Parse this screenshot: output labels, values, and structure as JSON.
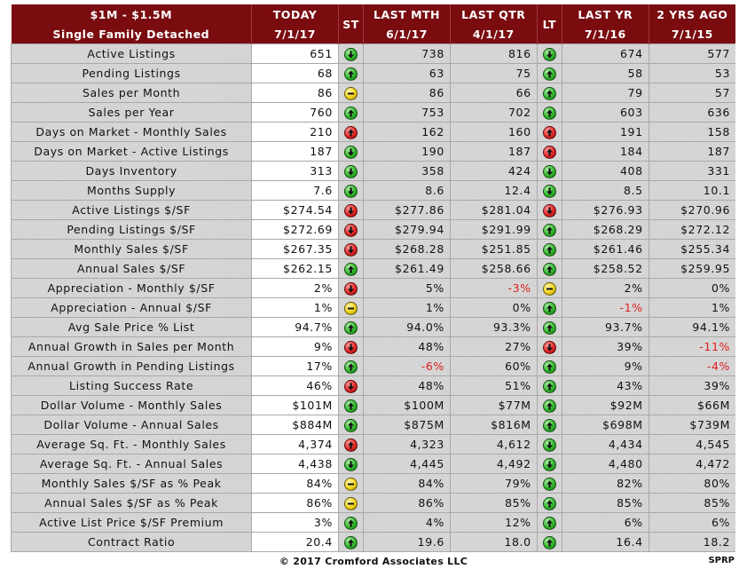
{
  "header": {
    "col_label_line1": "$1M - $1.5M",
    "col_label_line2": "Single Family Detached",
    "today_line1": "TODAY",
    "today_line2": "7/1/17",
    "st": "ST",
    "last_mth_line1": "LAST MTH",
    "last_mth_line2": "6/1/17",
    "last_qtr_line1": "LAST QTR",
    "last_qtr_line2": "4/1/17",
    "lt": "LT",
    "last_yr_line1": "LAST YR",
    "last_yr_line2": "7/1/16",
    "two_yrs_line1": "2 YRS AGO",
    "two_yrs_line2": "7/1/15"
  },
  "indicator_legend": {
    "up": "green-up-arrow-icon",
    "down": "green-down-arrow-icon",
    "red_up": "red-up-arrow-icon",
    "red_down": "red-down-arrow-icon",
    "dash": "yellow-dash-icon"
  },
  "rows": [
    {
      "label": "Active Listings",
      "today": "651",
      "st": "down",
      "last_mth": "738",
      "last_qtr": "816",
      "lt": "down",
      "last_yr": "674",
      "two_yrs": "577"
    },
    {
      "label": "Pending Listings",
      "today": "68",
      "st": "up",
      "last_mth": "63",
      "last_qtr": "75",
      "lt": "up",
      "last_yr": "58",
      "two_yrs": "53"
    },
    {
      "label": "Sales per Month",
      "today": "86",
      "st": "dash",
      "last_mth": "86",
      "last_qtr": "66",
      "lt": "up",
      "last_yr": "79",
      "two_yrs": "57"
    },
    {
      "label": "Sales per Year",
      "today": "760",
      "st": "up",
      "last_mth": "753",
      "last_qtr": "702",
      "lt": "up",
      "last_yr": "603",
      "two_yrs": "636"
    },
    {
      "label": "Days on Market - Monthly Sales",
      "today": "210",
      "st": "red_up",
      "last_mth": "162",
      "last_qtr": "160",
      "lt": "red_up",
      "last_yr": "191",
      "two_yrs": "158"
    },
    {
      "label": "Days on Market - Active Listings",
      "today": "187",
      "st": "down",
      "last_mth": "190",
      "last_qtr": "187",
      "lt": "red_up",
      "last_yr": "184",
      "two_yrs": "187"
    },
    {
      "label": "Days Inventory",
      "today": "313",
      "st": "down",
      "last_mth": "358",
      "last_qtr": "424",
      "lt": "down",
      "last_yr": "408",
      "two_yrs": "331"
    },
    {
      "label": "Months Supply",
      "today": "7.6",
      "st": "down",
      "last_mth": "8.6",
      "last_qtr": "12.4",
      "lt": "down",
      "last_yr": "8.5",
      "two_yrs": "10.1"
    },
    {
      "label": "Active Listings $/SF",
      "today": "$274.54",
      "st": "red_down",
      "last_mth": "$277.86",
      "last_qtr": "$281.04",
      "lt": "red_down",
      "last_yr": "$276.93",
      "two_yrs": "$270.96"
    },
    {
      "label": "Pending Listings $/SF",
      "today": "$272.69",
      "st": "red_down",
      "last_mth": "$279.94",
      "last_qtr": "$291.99",
      "lt": "up",
      "last_yr": "$268.29",
      "two_yrs": "$272.12"
    },
    {
      "label": "Monthly Sales $/SF",
      "today": "$267.35",
      "st": "red_down",
      "last_mth": "$268.28",
      "last_qtr": "$251.85",
      "lt": "up",
      "last_yr": "$261.46",
      "two_yrs": "$255.34"
    },
    {
      "label": "Annual Sales $/SF",
      "today": "$262.15",
      "st": "up",
      "last_mth": "$261.49",
      "last_qtr": "$258.66",
      "lt": "up",
      "last_yr": "$258.52",
      "two_yrs": "$259.95"
    },
    {
      "label": "Appreciation - Monthly $/SF",
      "today": "2%",
      "st": "red_down",
      "last_mth": "5%",
      "last_qtr": "-3%",
      "lt": "dash",
      "last_yr": "2%",
      "two_yrs": "0%"
    },
    {
      "label": "Appreciation - Annual $/SF",
      "today": "1%",
      "st": "dash",
      "last_mth": "1%",
      "last_qtr": "0%",
      "lt": "up",
      "last_yr": "-1%",
      "two_yrs": "1%"
    },
    {
      "label": "Avg Sale Price % List",
      "today": "94.7%",
      "st": "up",
      "last_mth": "94.0%",
      "last_qtr": "93.3%",
      "lt": "up",
      "last_yr": "93.7%",
      "two_yrs": "94.1%"
    },
    {
      "label": "Annual Growth in Sales per Month",
      "today": "9%",
      "st": "red_down",
      "last_mth": "48%",
      "last_qtr": "27%",
      "lt": "red_down",
      "last_yr": "39%",
      "two_yrs": "-11%"
    },
    {
      "label": "Annual Growth in Pending Listings",
      "today": "17%",
      "st": "up",
      "last_mth": "-6%",
      "last_qtr": "60%",
      "lt": "up",
      "last_yr": "9%",
      "two_yrs": "-4%"
    },
    {
      "label": "Listing Success Rate",
      "today": "46%",
      "st": "red_down",
      "last_mth": "48%",
      "last_qtr": "51%",
      "lt": "up",
      "last_yr": "43%",
      "two_yrs": "39%"
    },
    {
      "label": "Dollar Volume - Monthly Sales",
      "today": "$101M",
      "st": "up",
      "last_mth": "$100M",
      "last_qtr": "$77M",
      "lt": "up",
      "last_yr": "$92M",
      "two_yrs": "$66M"
    },
    {
      "label": "Dollar Volume - Annual Sales",
      "today": "$884M",
      "st": "up",
      "last_mth": "$875M",
      "last_qtr": "$816M",
      "lt": "up",
      "last_yr": "$698M",
      "two_yrs": "$739M"
    },
    {
      "label": "Average Sq. Ft. - Monthly Sales",
      "today": "4,374",
      "st": "red_up",
      "last_mth": "4,323",
      "last_qtr": "4,612",
      "lt": "down",
      "last_yr": "4,434",
      "two_yrs": "4,545"
    },
    {
      "label": "Average Sq. Ft. - Annual Sales",
      "today": "4,438",
      "st": "down",
      "last_mth": "4,445",
      "last_qtr": "4,492",
      "lt": "down",
      "last_yr": "4,480",
      "two_yrs": "4,472"
    },
    {
      "label": "Monthly Sales $/SF as % Peak",
      "today": "84%",
      "st": "dash",
      "last_mth": "84%",
      "last_qtr": "79%",
      "lt": "up",
      "last_yr": "82%",
      "two_yrs": "80%"
    },
    {
      "label": "Annual Sales $/SF as % Peak",
      "today": "86%",
      "st": "dash",
      "last_mth": "86%",
      "last_qtr": "85%",
      "lt": "up",
      "last_yr": "85%",
      "two_yrs": "85%"
    },
    {
      "label": "Active List Price $/SF Premium",
      "today": "3%",
      "st": "up",
      "last_mth": "4%",
      "last_qtr": "12%",
      "lt": "up",
      "last_yr": "6%",
      "two_yrs": "6%"
    },
    {
      "label": "Contract Ratio",
      "today": "20.4",
      "st": "up",
      "last_mth": "19.6",
      "last_qtr": "18.0",
      "lt": "up",
      "last_yr": "16.4",
      "two_yrs": "18.2"
    }
  ],
  "footer": {
    "copyright": "© 2017 Cromford Associates LLC",
    "tag": "SPRP"
  }
}
